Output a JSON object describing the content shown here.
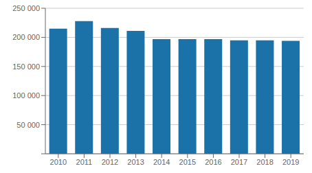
{
  "chart_data": {
    "type": "bar",
    "categories": [
      "2010",
      "2011",
      "2012",
      "2013",
      "2014",
      "2015",
      "2016",
      "2017",
      "2018",
      "2019"
    ],
    "values": [
      215000,
      228000,
      216000,
      211000,
      197000,
      197000,
      197000,
      195000,
      195000,
      194000
    ],
    "color": "#1a72a8",
    "ylim": [
      0,
      250000
    ],
    "yticks": [
      {
        "value": 0,
        "label": null
      },
      {
        "value": 50000,
        "label": "50 000"
      },
      {
        "value": 100000,
        "label": "100 000"
      },
      {
        "value": 150000,
        "label": "150 000"
      },
      {
        "value": 200000,
        "label": "200 000"
      },
      {
        "value": 250000,
        "label": "250 000"
      }
    ],
    "grid": true
  }
}
